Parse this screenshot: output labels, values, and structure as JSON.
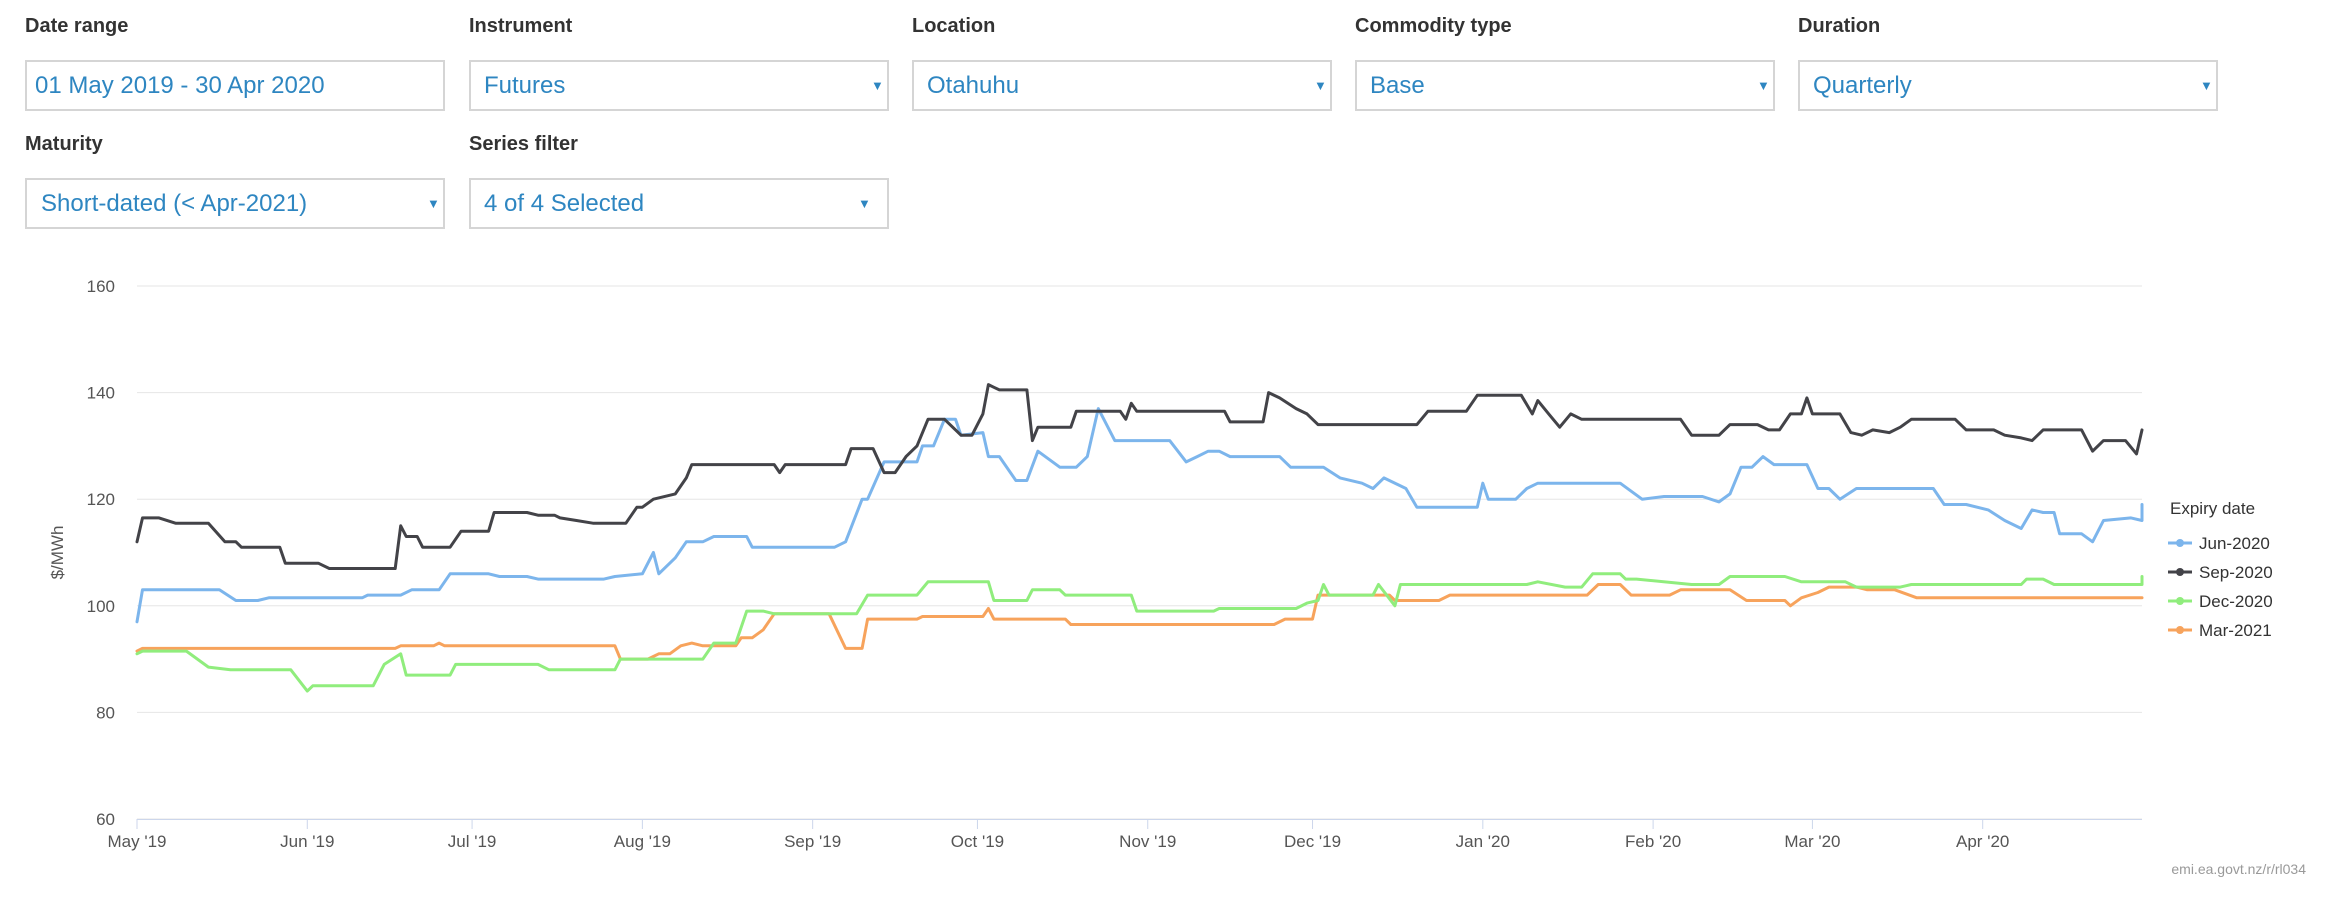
{
  "filters": [
    {
      "label": "Date range",
      "value": "01 May 2019 - 30 Apr 2020",
      "dropdown": false
    },
    {
      "label": "Instrument",
      "value": "Futures",
      "dropdown": true
    },
    {
      "label": "Location",
      "value": "Otahuhu",
      "dropdown": true
    },
    {
      "label": "Commodity type",
      "value": "Base",
      "dropdown": true
    },
    {
      "label": "Duration",
      "value": "Quarterly",
      "dropdown": true
    },
    {
      "label": "Maturity",
      "value": "Short-dated (< Apr-2021)",
      "dropdown": true
    },
    {
      "label": "Series filter",
      "value": "4 of 4 Selected",
      "dropdown": true
    }
  ],
  "credit": "emi.ea.govt.nz/r/rl034",
  "chart_data": {
    "type": "line",
    "title": "",
    "xlabel": "",
    "ylabel": "$/MWh",
    "ylim": [
      60,
      160
    ],
    "yticks": [
      60,
      80,
      100,
      120,
      140,
      160
    ],
    "xlim": [
      "2019-05-01",
      "2020-04-30"
    ],
    "xticks": [
      {
        "date": "2019-05-01",
        "label": "May '19"
      },
      {
        "date": "2019-06-01",
        "label": "Jun '19"
      },
      {
        "date": "2019-07-01",
        "label": "Jul '19"
      },
      {
        "date": "2019-08-01",
        "label": "Aug '19"
      },
      {
        "date": "2019-09-01",
        "label": "Sep '19"
      },
      {
        "date": "2019-10-01",
        "label": "Oct '19"
      },
      {
        "date": "2019-11-01",
        "label": "Nov '19"
      },
      {
        "date": "2019-12-01",
        "label": "Dec '19"
      },
      {
        "date": "2020-01-01",
        "label": "Jan '20"
      },
      {
        "date": "2020-02-01",
        "label": "Feb '20"
      },
      {
        "date": "2020-03-01",
        "label": "Mar '20"
      },
      {
        "date": "2020-04-01",
        "label": "Apr '20"
      }
    ],
    "grid": true,
    "legend_title": "Expiry date",
    "legend_position": "right",
    "series": [
      {
        "name": "Jun-2020",
        "color": "#7cb5ec",
        "points": [
          [
            "2019-05-01",
            97
          ],
          [
            "2019-05-02",
            103
          ],
          [
            "2019-05-16",
            103
          ],
          [
            "2019-05-19",
            101
          ],
          [
            "2019-05-23",
            101
          ],
          [
            "2019-05-25",
            101.5
          ],
          [
            "2019-06-11",
            101.5
          ],
          [
            "2019-06-12",
            102
          ],
          [
            "2019-06-18",
            102
          ],
          [
            "2019-06-20",
            103
          ],
          [
            "2019-06-25",
            103
          ],
          [
            "2019-06-27",
            106
          ],
          [
            "2019-07-04",
            106
          ],
          [
            "2019-07-06",
            105.5
          ],
          [
            "2019-07-11",
            105.5
          ],
          [
            "2019-07-13",
            105
          ],
          [
            "2019-07-25",
            105
          ],
          [
            "2019-07-27",
            105.5
          ],
          [
            "2019-08-01",
            106
          ],
          [
            "2019-08-03",
            110
          ],
          [
            "2019-08-04",
            106
          ],
          [
            "2019-08-07",
            109
          ],
          [
            "2019-08-09",
            112
          ],
          [
            "2019-08-12",
            112
          ],
          [
            "2019-08-14",
            113
          ],
          [
            "2019-08-20",
            113
          ],
          [
            "2019-08-21",
            111
          ],
          [
            "2019-09-05",
            111
          ],
          [
            "2019-09-07",
            112
          ],
          [
            "2019-09-10",
            120
          ],
          [
            "2019-09-11",
            120
          ],
          [
            "2019-09-14",
            127
          ],
          [
            "2019-09-20",
            127
          ],
          [
            "2019-09-21",
            130
          ],
          [
            "2019-09-23",
            130
          ],
          [
            "2019-09-25",
            135
          ],
          [
            "2019-09-27",
            135
          ],
          [
            "2019-09-28",
            132
          ],
          [
            "2019-10-02",
            132.5
          ],
          [
            "2019-10-03",
            128
          ],
          [
            "2019-10-05",
            128
          ],
          [
            "2019-10-08",
            123.5
          ],
          [
            "2019-10-10",
            123.5
          ],
          [
            "2019-10-12",
            129
          ],
          [
            "2019-10-16",
            126
          ],
          [
            "2019-10-19",
            126
          ],
          [
            "2019-10-21",
            128
          ],
          [
            "2019-10-23",
            137
          ],
          [
            "2019-10-26",
            131
          ],
          [
            "2019-11-05",
            131
          ],
          [
            "2019-11-08",
            127
          ],
          [
            "2019-11-10",
            128
          ],
          [
            "2019-11-12",
            129
          ],
          [
            "2019-11-14",
            129
          ],
          [
            "2019-11-16",
            128
          ],
          [
            "2019-11-25",
            128
          ],
          [
            "2019-11-27",
            126
          ],
          [
            "2019-12-03",
            126
          ],
          [
            "2019-12-06",
            124
          ],
          [
            "2019-12-10",
            123
          ],
          [
            "2019-12-12",
            122
          ],
          [
            "2019-12-14",
            124
          ],
          [
            "2019-12-18",
            122
          ],
          [
            "2019-12-20",
            118.5
          ],
          [
            "2019-12-31",
            118.5
          ],
          [
            "2020-01-01",
            123
          ],
          [
            "2020-01-02",
            120
          ],
          [
            "2020-01-07",
            120
          ],
          [
            "2020-01-09",
            122
          ],
          [
            "2020-01-11",
            123
          ],
          [
            "2020-01-26",
            123
          ],
          [
            "2020-01-30",
            120
          ],
          [
            "2020-02-03",
            120.5
          ],
          [
            "2020-02-10",
            120.5
          ],
          [
            "2020-02-13",
            119.5
          ],
          [
            "2020-02-15",
            121
          ],
          [
            "2020-02-17",
            126
          ],
          [
            "2020-02-19",
            126
          ],
          [
            "2020-02-21",
            128
          ],
          [
            "2020-02-23",
            126.5
          ],
          [
            "2020-02-29",
            126.5
          ],
          [
            "2020-03-02",
            122
          ],
          [
            "2020-03-04",
            122
          ],
          [
            "2020-03-06",
            120
          ],
          [
            "2020-03-09",
            122
          ],
          [
            "2020-03-23",
            122
          ],
          [
            "2020-03-25",
            119
          ],
          [
            "2020-03-29",
            119
          ],
          [
            "2020-04-02",
            118
          ],
          [
            "2020-04-05",
            116
          ],
          [
            "2020-04-08",
            114.5
          ],
          [
            "2020-04-10",
            118
          ],
          [
            "2020-04-12",
            117.5
          ],
          [
            "2020-04-14",
            117.5
          ],
          [
            "2020-04-15",
            113.5
          ],
          [
            "2020-04-19",
            113.5
          ],
          [
            "2020-04-21",
            112
          ],
          [
            "2020-04-23",
            116
          ],
          [
            "2020-04-28",
            116.5
          ],
          [
            "2020-04-30",
            116
          ],
          [
            "2020-04-30",
            119
          ]
        ]
      },
      {
        "name": "Sep-2020",
        "color": "#434348",
        "points": []
      },
      {
        "name": "Dec-2020",
        "color": "#90ed7d",
        "points": []
      },
      {
        "name": "Mar-2021",
        "color": "#f7a35c",
        "points": []
      }
    ]
  }
}
